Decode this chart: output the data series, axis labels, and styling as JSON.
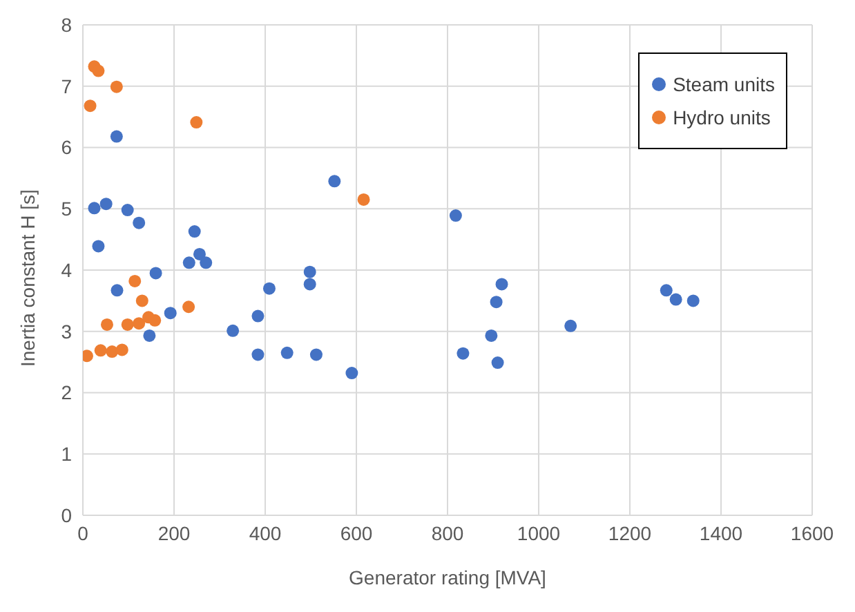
{
  "chart_data": {
    "type": "scatter",
    "xlabel": "Generator rating [MVA]",
    "ylabel": "Inertia constant H [s]",
    "xlim": [
      0,
      1600
    ],
    "xticks": [
      0,
      200,
      400,
      600,
      800,
      1000,
      1200,
      1400,
      1600
    ],
    "ylim": [
      0,
      8
    ],
    "yticks": [
      0,
      1,
      2,
      3,
      4,
      5,
      6,
      7,
      8
    ],
    "grid": true,
    "legend": "top right",
    "marker": "circle",
    "series": [
      {
        "name": "Steam units",
        "color": "#4472c4",
        "x": [
          25,
          51,
          34,
          74,
          98,
          123,
          75,
          160,
          146,
          192,
          245,
          256,
          233,
          270,
          329,
          384,
          384,
          409,
          448,
          498,
          498,
          512,
          552,
          590,
          818,
          834,
          896,
          907,
          910,
          919,
          1070,
          1280,
          1301,
          1339
        ],
        "values": [
          5.01,
          5.08,
          4.39,
          6.18,
          4.98,
          4.77,
          3.67,
          3.95,
          2.93,
          3.3,
          4.63,
          4.26,
          4.12,
          4.12,
          3.01,
          3.25,
          2.62,
          3.7,
          2.65,
          3.97,
          3.77,
          2.62,
          5.45,
          2.32,
          4.89,
          2.64,
          2.93,
          3.48,
          2.49,
          3.77,
          3.09,
          3.67,
          3.52,
          3.5
        ]
      },
      {
        "name": "Hydro units",
        "color": "#ed7d31",
        "x": [
          9,
          16,
          25,
          34,
          74,
          39,
          53,
          64,
          86,
          98,
          114,
          123,
          130,
          144,
          158,
          232,
          249,
          616
        ],
        "values": [
          2.6,
          6.68,
          7.32,
          7.25,
          6.99,
          2.69,
          3.11,
          2.67,
          2.7,
          3.11,
          3.82,
          3.13,
          3.5,
          3.23,
          3.18,
          3.4,
          6.41,
          5.15
        ]
      }
    ]
  }
}
